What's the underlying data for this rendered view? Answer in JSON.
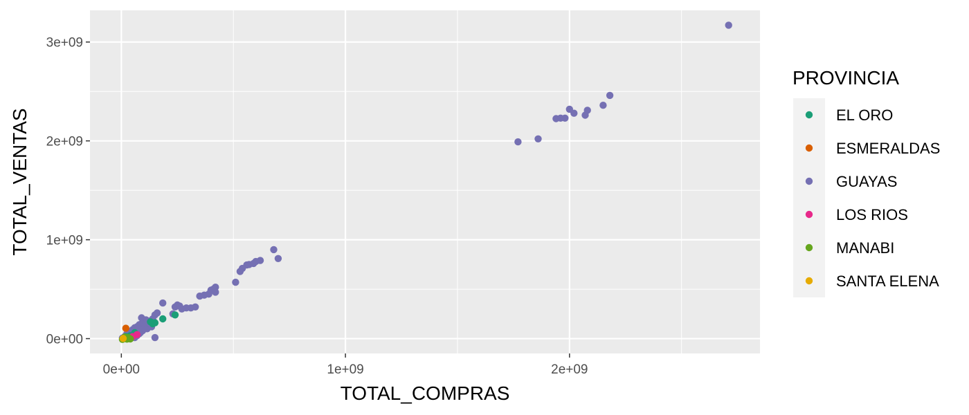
{
  "chart_data": {
    "type": "scatter",
    "xlabel": "TOTAL_COMPRAS",
    "ylabel": "TOTAL_VENTAS",
    "xlim": [
      -140000000,
      2850000000
    ],
    "ylim": [
      -150000000,
      3320000000
    ],
    "x_ticks": [
      0,
      1000000000,
      2000000000
    ],
    "x_tick_labels": [
      "0e+00",
      "1e+09",
      "2e+09"
    ],
    "y_ticks": [
      0,
      1000000000,
      2000000000,
      3000000000
    ],
    "y_tick_labels": [
      "0e+00",
      "1e+09",
      "2e+09",
      "3e+09"
    ],
    "grid": true,
    "legend": {
      "title": "PROVINCIA",
      "position": "right",
      "entries": [
        {
          "name": "EL ORO",
          "color": "#1B9E77"
        },
        {
          "name": "ESMERALDAS",
          "color": "#D95F02"
        },
        {
          "name": "GUAYAS",
          "color": "#7570B3"
        },
        {
          "name": "LOS RIOS",
          "color": "#E7298A"
        },
        {
          "name": "MANABI",
          "color": "#66A61E"
        },
        {
          "name": "SANTA ELENA",
          "color": "#E6AB02"
        }
      ]
    },
    "series": [
      {
        "name": "GUAYAS",
        "color": "#7570B3",
        "points": [
          [
            2710000000,
            3170000000
          ],
          [
            2180000000,
            2460000000
          ],
          [
            2150000000,
            2360000000
          ],
          [
            2080000000,
            2310000000
          ],
          [
            2070000000,
            2260000000
          ],
          [
            2020000000,
            2280000000
          ],
          [
            2000000000,
            2320000000
          ],
          [
            1980000000,
            2230000000
          ],
          [
            1960000000,
            2230000000
          ],
          [
            1940000000,
            2225000000
          ],
          [
            1860000000,
            2020000000
          ],
          [
            1770000000,
            1990000000
          ],
          [
            680000000,
            900000000
          ],
          [
            700000000,
            810000000
          ],
          [
            620000000,
            790000000
          ],
          [
            600000000,
            780000000
          ],
          [
            590000000,
            760000000
          ],
          [
            570000000,
            750000000
          ],
          [
            560000000,
            745000000
          ],
          [
            540000000,
            710000000
          ],
          [
            530000000,
            680000000
          ],
          [
            510000000,
            570000000
          ],
          [
            420000000,
            520000000
          ],
          [
            410000000,
            500000000
          ],
          [
            400000000,
            490000000
          ],
          [
            420000000,
            470000000
          ],
          [
            390000000,
            450000000
          ],
          [
            370000000,
            440000000
          ],
          [
            350000000,
            430000000
          ],
          [
            330000000,
            320000000
          ],
          [
            310000000,
            310000000
          ],
          [
            290000000,
            310000000
          ],
          [
            270000000,
            300000000
          ],
          [
            250000000,
            340000000
          ],
          [
            240000000,
            320000000
          ],
          [
            260000000,
            330000000
          ],
          [
            185000000,
            360000000
          ],
          [
            230000000,
            250000000
          ],
          [
            160000000,
            260000000
          ],
          [
            150000000,
            240000000
          ],
          [
            140000000,
            200000000
          ],
          [
            130000000,
            180000000
          ],
          [
            120000000,
            170000000
          ],
          [
            110000000,
            190000000
          ],
          [
            100000000,
            160000000
          ],
          [
            90000000,
            150000000
          ],
          [
            80000000,
            140000000
          ],
          [
            70000000,
            120000000
          ],
          [
            60000000,
            110000000
          ],
          [
            50000000,
            90000000
          ],
          [
            45000000,
            70000000
          ],
          [
            40000000,
            60000000
          ],
          [
            30000000,
            40000000
          ],
          [
            20000000,
            30000000
          ],
          [
            15000000,
            20000000
          ],
          [
            10000000,
            10000000
          ],
          [
            5000000,
            5000000
          ],
          [
            85000000,
            60000000
          ],
          [
            95000000,
            80000000
          ],
          [
            105000000,
            130000000
          ],
          [
            115000000,
            100000000
          ],
          [
            125000000,
            150000000
          ],
          [
            135000000,
            120000000
          ],
          [
            145000000,
            170000000
          ],
          [
            55000000,
            40000000
          ],
          [
            65000000,
            80000000
          ],
          [
            75000000,
            100000000
          ],
          [
            35000000,
            20000000
          ],
          [
            25000000,
            50000000
          ],
          [
            90000000,
            210000000
          ],
          [
            150000000,
            10000000
          ],
          [
            60000000,
            10000000
          ],
          [
            70000000,
            30000000
          ],
          [
            80000000,
            50000000
          ]
        ]
      },
      {
        "name": "EL ORO",
        "color": "#1B9E77",
        "points": [
          [
            240000000,
            240000000
          ],
          [
            185000000,
            200000000
          ],
          [
            150000000,
            160000000
          ],
          [
            140000000,
            150000000
          ],
          [
            130000000,
            170000000
          ],
          [
            60000000,
            60000000
          ],
          [
            40000000,
            30000000
          ],
          [
            20000000,
            20000000
          ]
        ]
      },
      {
        "name": "ESMERALDAS",
        "color": "#D95F02",
        "points": [
          [
            20000000,
            105000000
          ],
          [
            15000000,
            10000000
          ]
        ]
      },
      {
        "name": "LOS RIOS",
        "color": "#E7298A",
        "points": [
          [
            70000000,
            40000000
          ],
          [
            50000000,
            20000000
          ]
        ]
      },
      {
        "name": "MANABI",
        "color": "#66A61E",
        "points": [
          [
            10000000,
            5000000
          ],
          [
            25000000,
            -5000000
          ],
          [
            5000000,
            -8000000
          ],
          [
            30000000,
            10000000
          ],
          [
            40000000,
            -3000000
          ],
          [
            15000000,
            15000000
          ]
        ]
      },
      {
        "name": "SANTA ELENA",
        "color": "#E6AB02",
        "points": [
          [
            8000000,
            2000000
          ]
        ]
      }
    ]
  }
}
